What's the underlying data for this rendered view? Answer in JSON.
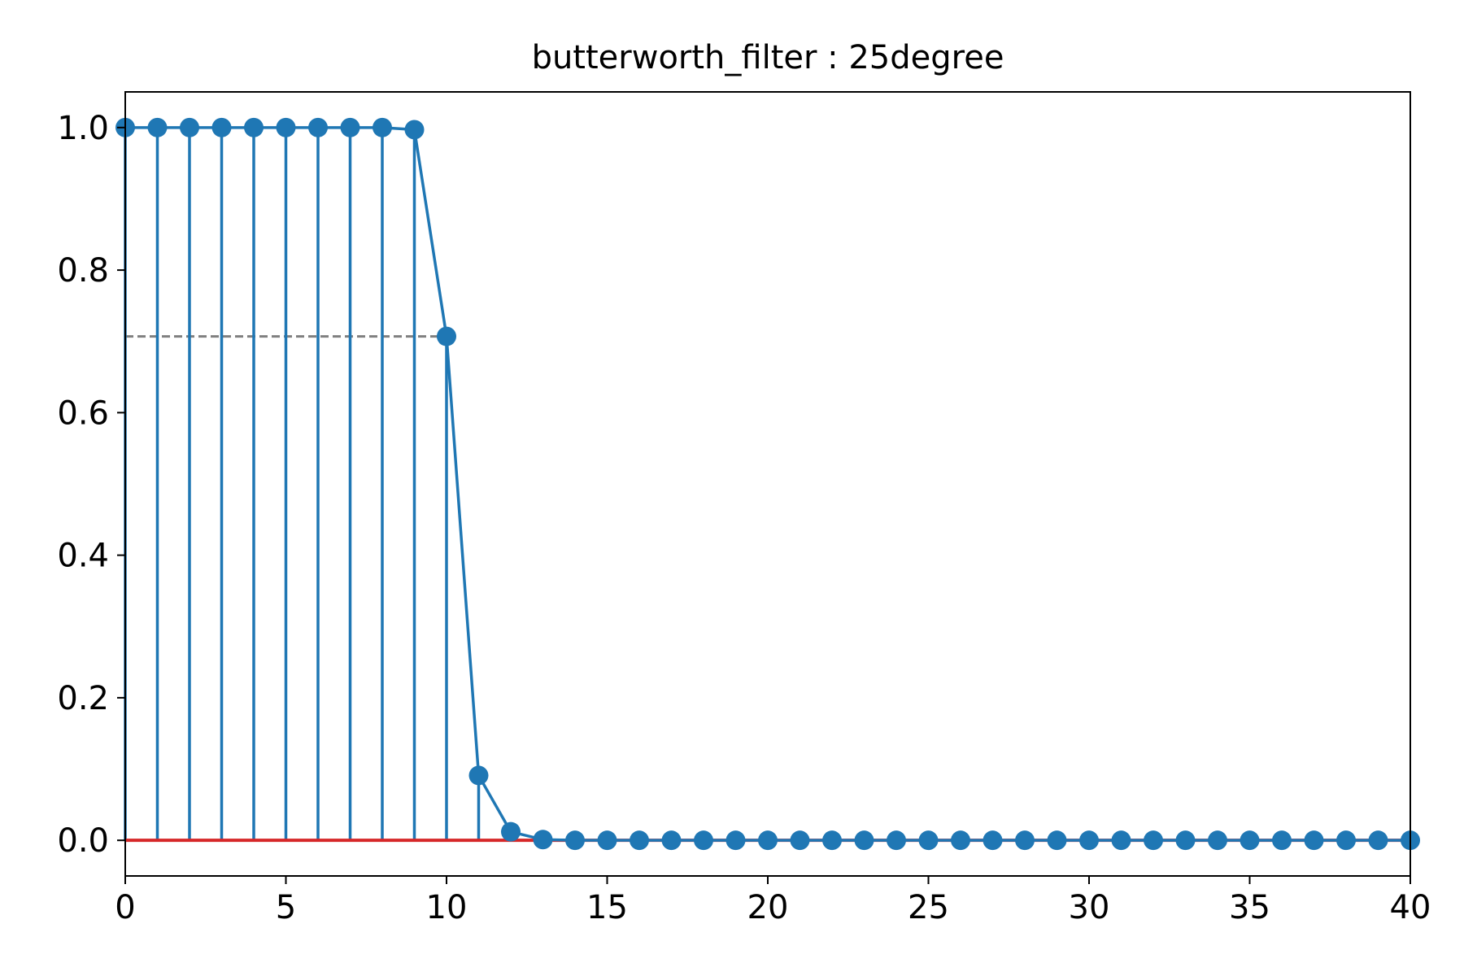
{
  "chart_data": {
    "type": "stem",
    "title": "butterworth_filter : 25degree",
    "xlabel": "",
    "ylabel": "",
    "xlim": [
      0,
      40
    ],
    "ylim": [
      -0.05,
      1.05
    ],
    "x_ticks": [
      0,
      5,
      10,
      15,
      20,
      25,
      30,
      35,
      40
    ],
    "x_tick_labels": [
      "0",
      "5",
      "10",
      "15",
      "20",
      "25",
      "30",
      "35",
      "40"
    ],
    "y_ticks": [
      0.0,
      0.2,
      0.4,
      0.6,
      0.8,
      1.0
    ],
    "y_tick_labels": [
      "0.0",
      "0.2",
      "0.4",
      "0.6",
      "0.8",
      "1.0"
    ],
    "grid": false,
    "series": [
      {
        "x": [
          0,
          1,
          2,
          3,
          4,
          5,
          6,
          7,
          8,
          9,
          10,
          11,
          12,
          13,
          14,
          15,
          16,
          17,
          18,
          19,
          20,
          21,
          22,
          23,
          24,
          25,
          26,
          27,
          28,
          29,
          30,
          31,
          32,
          33,
          34,
          35,
          36,
          37,
          38,
          39,
          40
        ],
        "values": [
          1.0,
          1.0,
          1.0,
          1.0,
          1.0,
          1.0,
          1.0,
          1.0,
          1.0,
          0.997,
          0.707,
          0.091,
          0.012,
          0.001,
          0,
          0,
          0,
          0,
          0,
          0,
          0,
          0,
          0,
          0,
          0,
          0,
          0,
          0,
          0,
          0,
          0,
          0,
          0,
          0,
          0,
          0,
          0,
          0,
          0,
          0,
          0
        ]
      }
    ],
    "baseline": 0.0,
    "reference_line": {
      "y": 0.707,
      "x_range": [
        0,
        10
      ]
    },
    "colors": {
      "series": "#1f77b4",
      "baseline": "#d62728",
      "reference": "#808080"
    }
  }
}
